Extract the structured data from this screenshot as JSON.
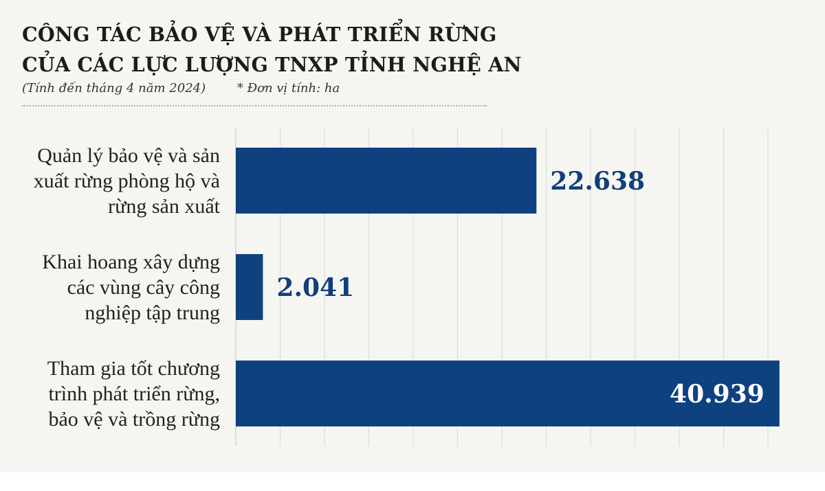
{
  "header": {
    "title_lines": [
      "CÔNG TÁC BẢO VỆ VÀ PHÁT TRIỂN RỪNG",
      "CỦA CÁC LỰC LƯỢNG TNXP TỈNH NGHỆ AN"
    ],
    "date_note": "(Tính đến tháng 4 năm 2024)",
    "unit_note": "* Đơn vị tính: ha"
  },
  "colors": {
    "bar": "#0f4180",
    "value_outside": "#123f7c",
    "value_inside": "#ffffff",
    "grid": "#dcdcdc",
    "background": "#f5f6f2"
  },
  "chart_data": {
    "type": "bar",
    "orientation": "horizontal",
    "categories": [
      [
        "Quản lý bảo vệ và sản",
        "xuất rừng phòng hộ và",
        "rừng sản xuất"
      ],
      [
        "Khai hoang xây dựng",
        "các vùng cây công",
        "nghiệp tập trung"
      ],
      [
        "Tham gia tốt chương",
        "trình phát triển rừng,",
        "bảo vệ và trồng rừng"
      ]
    ],
    "values": [
      22638,
      2041,
      40939
    ],
    "value_labels": [
      "22.638",
      "2.041",
      "40.939"
    ],
    "unit": "ha",
    "xlim": [
      0,
      41000
    ],
    "grid": true,
    "axis_ticks_shown": false
  }
}
